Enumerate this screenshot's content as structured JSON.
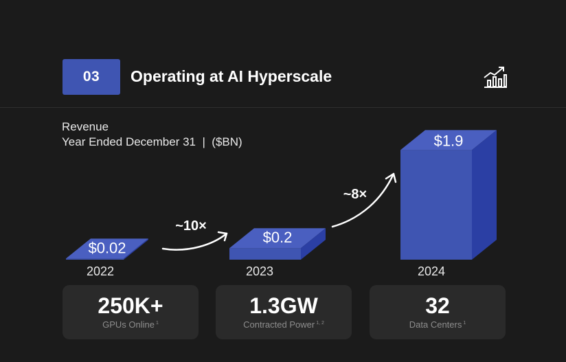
{
  "header": {
    "badge": "03",
    "title": "Operating at AI Hyperscale",
    "icon": "growth-chart-icon"
  },
  "subtitle": {
    "line1": "Revenue",
    "line2": "Year Ended December 31  |  ($BN)"
  },
  "chart_data": {
    "type": "bar",
    "categories": [
      "2022",
      "2023",
      "2024"
    ],
    "values": [
      0.02,
      0.2,
      1.9
    ],
    "value_labels": [
      "$0.02",
      "$0.2",
      "$1.9"
    ],
    "annotations": [
      {
        "label": "~10×",
        "from": "2022",
        "to": "2023"
      },
      {
        "label": "~8×",
        "from": "2023",
        "to": "2024"
      }
    ],
    "title": "",
    "xlabel": "",
    "ylabel": "",
    "grid": false,
    "colors": {
      "front": "#3f55b2",
      "top": "#4a5fc0",
      "side": "#2b3fa4"
    }
  },
  "stats": [
    {
      "value": "250K+",
      "label": "GPUs Online",
      "sup": "1"
    },
    {
      "value": "1.3GW",
      "label": "Contracted Power",
      "sup": "1, 2"
    },
    {
      "value": "32",
      "label": "Data Centers",
      "sup": "1"
    }
  ],
  "colors": {
    "background": "#1b1b1b",
    "accent": "#3f55b2",
    "card": "#2a2a2a"
  }
}
